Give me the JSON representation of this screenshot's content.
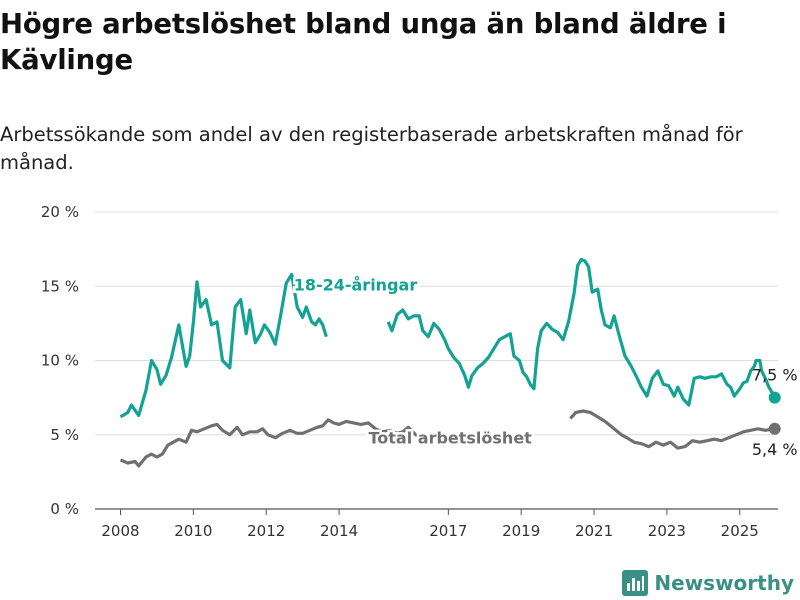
{
  "title": "Högre arbetslöshet bland unga än bland äldre i Kävlinge",
  "subtitle": "Arbetssökande som andel av den registerbaserade arbetskraften månad för månad.",
  "brand": {
    "name": "Newsworthy"
  },
  "colors": {
    "youth": "#14a294",
    "total": "#707070",
    "grid": "#dddddd",
    "axis": "#555555",
    "brand": "#3a8f87"
  },
  "chart_data": {
    "type": "line",
    "x_ticks": [
      2008,
      2010,
      2012,
      2014,
      2017,
      2019,
      2021,
      2023,
      2025
    ],
    "y_ticks": [
      0,
      5,
      10,
      15,
      20
    ],
    "y_tick_labels": [
      "0 %",
      "5 %",
      "10 %",
      "15 %",
      "20 %"
    ],
    "xlim": [
      2007.3,
      2026.05
    ],
    "ylim": [
      0,
      20
    ],
    "grid": true,
    "series": [
      {
        "name": "18-24-åringar",
        "color": "#14a294",
        "end_label": "7,5 %",
        "points": [
          [
            2008.0,
            6.2
          ],
          [
            2008.2,
            6.5
          ],
          [
            2008.3,
            7.0
          ],
          [
            2008.5,
            6.3
          ],
          [
            2008.7,
            8.0
          ],
          [
            2008.85,
            10.0
          ],
          [
            2009.0,
            9.4
          ],
          [
            2009.1,
            8.4
          ],
          [
            2009.25,
            9.0
          ],
          [
            2009.4,
            10.2
          ],
          [
            2009.6,
            12.4
          ],
          [
            2009.8,
            9.6
          ],
          [
            2009.9,
            10.3
          ],
          [
            2010.0,
            12.6
          ],
          [
            2010.1,
            15.3
          ],
          [
            2010.2,
            13.6
          ],
          [
            2010.35,
            14.1
          ],
          [
            2010.5,
            12.4
          ],
          [
            2010.65,
            12.6
          ],
          [
            2010.8,
            10.0
          ],
          [
            2011.0,
            9.5
          ],
          [
            2011.15,
            13.6
          ],
          [
            2011.3,
            14.1
          ],
          [
            2011.45,
            11.8
          ],
          [
            2011.55,
            13.4
          ],
          [
            2011.7,
            11.2
          ],
          [
            2011.85,
            11.8
          ],
          [
            2011.95,
            12.4
          ],
          [
            2012.1,
            11.9
          ],
          [
            2012.25,
            11.1
          ],
          [
            2012.4,
            13.1
          ],
          [
            2012.55,
            15.2
          ],
          [
            2012.7,
            15.8
          ],
          [
            2012.85,
            13.6
          ],
          [
            2013.0,
            12.9
          ],
          [
            2013.1,
            13.6
          ],
          [
            2013.25,
            12.6
          ],
          [
            2013.35,
            12.4
          ],
          [
            2013.45,
            12.8
          ],
          [
            2013.55,
            12.4
          ],
          [
            2013.65,
            11.6
          ]
        ],
        "hidden_gap": [
          [
            2013.65,
            11.6
          ],
          [
            2015.35,
            12.6
          ]
        ],
        "points_after_gap": [
          [
            2015.35,
            12.6
          ],
          [
            2015.45,
            12.0
          ],
          [
            2015.6,
            13.1
          ],
          [
            2015.75,
            13.4
          ],
          [
            2015.9,
            12.8
          ],
          [
            2016.05,
            13.0
          ],
          [
            2016.2,
            13.0
          ],
          [
            2016.3,
            12.0
          ],
          [
            2016.45,
            11.6
          ],
          [
            2016.6,
            12.5
          ],
          [
            2016.75,
            12.1
          ],
          [
            2016.9,
            11.4
          ],
          [
            2017.0,
            10.8
          ],
          [
            2017.15,
            10.2
          ],
          [
            2017.3,
            9.8
          ],
          [
            2017.45,
            9.0
          ],
          [
            2017.55,
            8.2
          ],
          [
            2017.65,
            9.0
          ],
          [
            2017.8,
            9.5
          ],
          [
            2017.95,
            9.8
          ],
          [
            2018.1,
            10.2
          ],
          [
            2018.25,
            10.8
          ],
          [
            2018.4,
            11.4
          ],
          [
            2018.55,
            11.6
          ],
          [
            2018.7,
            11.8
          ],
          [
            2018.8,
            10.3
          ],
          [
            2018.95,
            10.0
          ],
          [
            2019.05,
            9.2
          ],
          [
            2019.15,
            8.9
          ],
          [
            2019.25,
            8.4
          ],
          [
            2019.35,
            8.1
          ],
          [
            2019.45,
            10.8
          ],
          [
            2019.55,
            12.0
          ],
          [
            2019.7,
            12.5
          ],
          [
            2019.85,
            12.1
          ],
          [
            2020.0,
            11.9
          ],
          [
            2020.15,
            11.4
          ],
          [
            2020.3,
            12.6
          ],
          [
            2020.45,
            14.5
          ],
          [
            2020.55,
            16.4
          ],
          [
            2020.65,
            16.8
          ],
          [
            2020.75,
            16.7
          ],
          [
            2020.85,
            16.3
          ],
          [
            2020.95,
            14.6
          ],
          [
            2021.1,
            14.8
          ],
          [
            2021.2,
            13.4
          ],
          [
            2021.3,
            12.4
          ],
          [
            2021.45,
            12.2
          ],
          [
            2021.55,
            13.0
          ],
          [
            2021.7,
            11.6
          ],
          [
            2021.85,
            10.3
          ],
          [
            2022.0,
            9.7
          ],
          [
            2022.15,
            9.0
          ],
          [
            2022.3,
            8.2
          ],
          [
            2022.45,
            7.6
          ],
          [
            2022.6,
            8.8
          ],
          [
            2022.75,
            9.3
          ],
          [
            2022.9,
            8.4
          ],
          [
            2023.05,
            8.3
          ],
          [
            2023.2,
            7.6
          ],
          [
            2023.3,
            8.2
          ],
          [
            2023.45,
            7.4
          ],
          [
            2023.6,
            7.0
          ],
          [
            2023.75,
            8.8
          ],
          [
            2023.9,
            8.9
          ],
          [
            2024.05,
            8.8
          ],
          [
            2024.2,
            8.9
          ],
          [
            2024.35,
            8.9
          ],
          [
            2024.5,
            9.1
          ],
          [
            2024.65,
            8.4
          ],
          [
            2024.75,
            8.2
          ],
          [
            2024.85,
            7.6
          ],
          [
            2025.0,
            8.1
          ],
          [
            2025.1,
            8.5
          ],
          [
            2025.2,
            8.6
          ],
          [
            2025.3,
            9.3
          ],
          [
            2025.4,
            9.6
          ],
          [
            2025.45,
            10.0
          ],
          [
            2025.55,
            10.0
          ],
          [
            2025.6,
            9.3
          ],
          [
            2025.7,
            8.8
          ],
          [
            2025.8,
            8.2
          ],
          [
            2025.9,
            7.8
          ],
          [
            2025.96,
            7.5
          ]
        ],
        "label_pos": [
          2014.45,
          14.7
        ]
      },
      {
        "name": "Total arbetslöshet",
        "color": "#707070",
        "end_label": "5,4 %",
        "points": [
          [
            2008.0,
            3.3
          ],
          [
            2008.2,
            3.1
          ],
          [
            2008.4,
            3.2
          ],
          [
            2008.5,
            2.9
          ],
          [
            2008.7,
            3.5
          ],
          [
            2008.85,
            3.7
          ],
          [
            2009.0,
            3.5
          ],
          [
            2009.15,
            3.7
          ],
          [
            2009.3,
            4.3
          ],
          [
            2009.45,
            4.5
          ],
          [
            2009.6,
            4.7
          ],
          [
            2009.8,
            4.5
          ],
          [
            2009.95,
            5.3
          ],
          [
            2010.1,
            5.2
          ],
          [
            2010.3,
            5.4
          ],
          [
            2010.5,
            5.6
          ],
          [
            2010.65,
            5.7
          ],
          [
            2010.8,
            5.3
          ],
          [
            2011.0,
            5.0
          ],
          [
            2011.2,
            5.5
          ],
          [
            2011.35,
            5.0
          ],
          [
            2011.55,
            5.2
          ],
          [
            2011.75,
            5.2
          ],
          [
            2011.9,
            5.4
          ],
          [
            2012.05,
            5.0
          ],
          [
            2012.25,
            4.8
          ],
          [
            2012.45,
            5.1
          ],
          [
            2012.65,
            5.3
          ],
          [
            2012.85,
            5.1
          ],
          [
            2013.0,
            5.1
          ],
          [
            2013.2,
            5.3
          ],
          [
            2013.4,
            5.5
          ],
          [
            2013.55,
            5.6
          ],
          [
            2013.7,
            6.0
          ],
          [
            2013.85,
            5.8
          ],
          [
            2014.0,
            5.7
          ],
          [
            2014.2,
            5.9
          ],
          [
            2014.4,
            5.8
          ],
          [
            2014.6,
            5.7
          ],
          [
            2014.8,
            5.8
          ],
          [
            2015.0,
            5.4
          ],
          [
            2015.2,
            5.2
          ],
          [
            2015.4,
            5.3
          ],
          [
            2015.6,
            5.1
          ],
          [
            2015.75,
            5.2
          ],
          [
            2015.9,
            5.5
          ],
          [
            2016.1,
            5.0
          ],
          [
            2016.3,
            4.8
          ],
          [
            2016.5,
            4.9
          ],
          [
            2016.7,
            5.1
          ],
          [
            2016.9,
            4.9
          ],
          [
            2017.0,
            4.8
          ]
        ],
        "hidden_gap": [
          [
            2017.0,
            4.8
          ],
          [
            2020.35,
            6.1
          ]
        ],
        "points_after_gap": [
          [
            2020.35,
            6.1
          ],
          [
            2020.5,
            6.5
          ],
          [
            2020.7,
            6.6
          ],
          [
            2020.9,
            6.5
          ],
          [
            2021.1,
            6.2
          ],
          [
            2021.3,
            5.9
          ],
          [
            2021.45,
            5.6
          ],
          [
            2021.6,
            5.3
          ],
          [
            2021.75,
            5.0
          ],
          [
            2021.9,
            4.8
          ],
          [
            2022.1,
            4.5
          ],
          [
            2022.3,
            4.4
          ],
          [
            2022.5,
            4.2
          ],
          [
            2022.7,
            4.5
          ],
          [
            2022.9,
            4.3
          ],
          [
            2023.1,
            4.5
          ],
          [
            2023.3,
            4.1
          ],
          [
            2023.5,
            4.2
          ],
          [
            2023.7,
            4.6
          ],
          [
            2023.9,
            4.5
          ],
          [
            2024.1,
            4.6
          ],
          [
            2024.3,
            4.7
          ],
          [
            2024.5,
            4.6
          ],
          [
            2024.7,
            4.8
          ],
          [
            2024.9,
            5.0
          ],
          [
            2025.1,
            5.2
          ],
          [
            2025.3,
            5.3
          ],
          [
            2025.5,
            5.4
          ],
          [
            2025.7,
            5.3
          ],
          [
            2025.96,
            5.4
          ]
        ],
        "label_pos": [
          2017.05,
          4.4
        ]
      }
    ]
  }
}
